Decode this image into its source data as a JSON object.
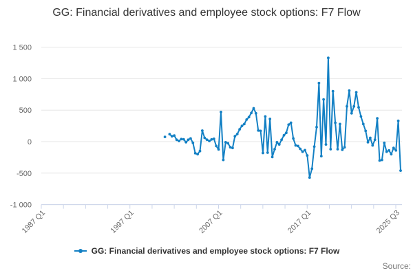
{
  "header": {
    "title": "GG: Financial derivatives and employee stock options: F7 Flow"
  },
  "legend": {
    "label": "GG: Financial derivatives and employee stock options: F7 Flow"
  },
  "footer": {
    "source_label": "Source:"
  },
  "colors": {
    "series": "#1380c4",
    "grid": "#e6e6e6",
    "axis": "#ccd6eb",
    "axis_label": "#666666",
    "title_text": "#333333",
    "legend_text": "#333333",
    "source_text": "#777777"
  },
  "chart_data": {
    "type": "line",
    "title": "GG: Financial derivatives and employee stock options: F7 Flow",
    "legend_position": "bottom",
    "grid": "horizontal-only",
    "x_axis": {
      "unit": "quarter",
      "range_start": "1987 Q1",
      "range_end": "2025 Q3",
      "total_quarters": 155,
      "tick_count": 17,
      "labels": [
        "1987 Q1",
        "1997 Q1",
        "2007 Q1",
        "2017 Q1",
        "2025 Q3"
      ],
      "label_tick_indices": [
        0,
        4,
        8,
        12,
        16
      ],
      "label_rotation_deg": -45
    },
    "y_axis": {
      "min": -1000,
      "max": 1500,
      "tick_interval": 500,
      "tick_values": [
        1500,
        1000,
        500,
        0,
        -500,
        -1000
      ],
      "tick_labels": [
        "1 500",
        "1 000",
        "500",
        "0",
        "-500",
        "-1 000"
      ]
    },
    "series": [
      {
        "name": "GG: Financial derivatives and employee stock options: F7 Flow",
        "color": "#1380c4",
        "marker": "circle",
        "first_point_quarter": "2000 Q2",
        "first_point_offset": 53,
        "values": [
          75,
          null,
          118,
          85,
          96,
          30,
          10,
          40,
          37,
          -10,
          30,
          50,
          -20,
          -185,
          -200,
          -150,
          175,
          60,
          30,
          10,
          35,
          45,
          -70,
          -125,
          470,
          -290,
          -10,
          -26,
          -90,
          -100,
          85,
          120,
          195,
          250,
          280,
          350,
          390,
          455,
          530,
          450,
          177,
          170,
          -180,
          400,
          -175,
          360,
          -245,
          -120,
          -10,
          -45,
          30,
          100,
          140,
          270,
          300,
          50,
          -60,
          -70,
          -115,
          -160,
          -135,
          -220,
          -570,
          -430,
          -80,
          230,
          930,
          -230,
          670,
          -45,
          1330,
          -120,
          800,
          300,
          -120,
          280,
          -130,
          -90,
          560,
          810,
          450,
          560,
          785,
          545,
          400,
          280,
          170,
          -10,
          60,
          -60,
          30,
          370,
          -300,
          -290,
          -20,
          -160,
          -140,
          -200,
          -100,
          -140,
          330,
          -460
        ]
      }
    ]
  }
}
